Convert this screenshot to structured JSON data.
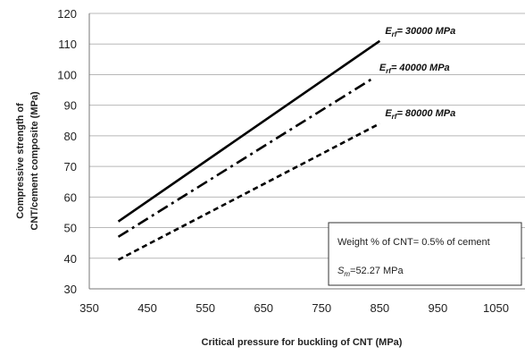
{
  "chart_data": {
    "type": "line",
    "xlabel": "Critical pressure for buckling of CNT (MPa)",
    "ylabel": [
      "Compressive strength of",
      "CNT/cement composite (MPa)"
    ],
    "xlim": [
      350,
      1100
    ],
    "ylim": [
      30,
      120
    ],
    "xticks": [
      "350",
      "450",
      "550",
      "650",
      "750",
      "850",
      "950",
      "1050"
    ],
    "yticks": [
      "30",
      "40",
      "50",
      "60",
      "70",
      "80",
      "90",
      "100",
      "110",
      "120"
    ],
    "grid": "horizontal",
    "series": [
      {
        "name": "E_rf= 30000 MPa",
        "label_main": "E",
        "label_sub": "rf",
        "label_rest": "= 30000  MPa",
        "line_style": "solid",
        "x": [
          400,
          850
        ],
        "y": [
          52,
          111
        ]
      },
      {
        "name": "E_rf= 40000 MPa",
        "label_main": "E",
        "label_sub": "rf",
        "label_rest": "= 40000  MPa",
        "line_style": "dashdot",
        "x": [
          400,
          840
        ],
        "y": [
          47,
          99
        ]
      },
      {
        "name": "E_rf= 80000 MPa",
        "label_main": "E",
        "label_sub": "rf",
        "label_rest": "= 80000  MPa",
        "line_style": "dashed",
        "x": [
          400,
          850
        ],
        "y": [
          39.5,
          84
        ]
      }
    ],
    "annotation": {
      "line1": "Weight % of CNT= 0.5% of cement",
      "line2_main": "S",
      "line2_sub": "m",
      "line2_rest": "=52.27 MPa"
    }
  }
}
